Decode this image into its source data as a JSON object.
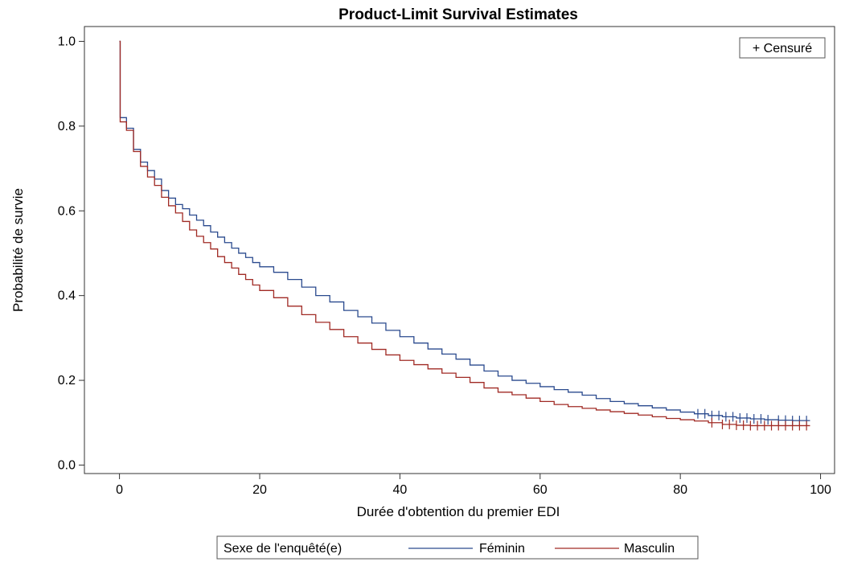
{
  "chart_data": {
    "type": "line",
    "step": true,
    "title": "Product-Limit Survival Estimates",
    "xlabel": "Durée d'obtention du premier EDI",
    "ylabel": "Probabilité de survie",
    "xlim": [
      -5,
      102
    ],
    "ylim": [
      -0.02,
      1.035
    ],
    "x_ticks": [
      0,
      20,
      40,
      60,
      80,
      100
    ],
    "y_ticks": [
      0.0,
      0.2,
      0.4,
      0.6,
      0.8,
      1.0
    ],
    "x_tick_labels": [
      "0",
      "20",
      "40",
      "60",
      "80",
      "100"
    ],
    "y_tick_labels": [
      "0.0",
      "0.2",
      "0.4",
      "0.6",
      "0.8",
      "1.0"
    ],
    "grid": false,
    "censor_legend": {
      "label": "+ Censuré",
      "placement": "top-right"
    },
    "legend": {
      "title": "Sexe de l'enquêté(e)",
      "placement": "bottom-center"
    },
    "series": [
      {
        "name": "Féminin",
        "color": "#2a4a8e",
        "x": [
          0,
          0.1,
          1,
          2,
          3,
          4,
          5,
          6,
          7,
          8,
          9,
          10,
          11,
          12,
          13,
          14,
          15,
          16,
          17,
          18,
          19,
          20,
          22,
          24,
          26,
          28,
          30,
          32,
          34,
          36,
          38,
          40,
          42,
          44,
          46,
          48,
          50,
          52,
          54,
          56,
          58,
          60,
          62,
          64,
          66,
          68,
          70,
          72,
          74,
          76,
          78,
          80,
          82,
          84,
          86,
          88,
          90,
          92,
          94,
          96,
          98.5
        ],
        "y": [
          1.0,
          0.82,
          0.795,
          0.745,
          0.715,
          0.695,
          0.675,
          0.648,
          0.63,
          0.615,
          0.605,
          0.59,
          0.578,
          0.565,
          0.55,
          0.538,
          0.525,
          0.512,
          0.5,
          0.49,
          0.478,
          0.468,
          0.455,
          0.438,
          0.42,
          0.4,
          0.385,
          0.365,
          0.35,
          0.335,
          0.318,
          0.303,
          0.288,
          0.274,
          0.262,
          0.25,
          0.236,
          0.222,
          0.21,
          0.2,
          0.193,
          0.185,
          0.178,
          0.172,
          0.165,
          0.157,
          0.15,
          0.145,
          0.14,
          0.135,
          0.13,
          0.125,
          0.121,
          0.117,
          0.114,
          0.111,
          0.109,
          0.107,
          0.106,
          0.105,
          0.105
        ],
        "censored_x": [
          82.5,
          83.5,
          84.5,
          85.5,
          86.5,
          87.5,
          88.5,
          89.5,
          90.5,
          91.5,
          92.5,
          94,
          95,
          96,
          97,
          98
        ]
      },
      {
        "name": "Masculin",
        "color": "#a02a24",
        "x": [
          0,
          0.1,
          1,
          2,
          3,
          4,
          5,
          6,
          7,
          8,
          9,
          10,
          11,
          12,
          13,
          14,
          15,
          16,
          17,
          18,
          19,
          20,
          22,
          24,
          26,
          28,
          30,
          32,
          34,
          36,
          38,
          40,
          42,
          44,
          46,
          48,
          50,
          52,
          54,
          56,
          58,
          60,
          62,
          64,
          66,
          68,
          70,
          72,
          74,
          76,
          78,
          80,
          82,
          84,
          86,
          88,
          90,
          92,
          94,
          96,
          98.5
        ],
        "y": [
          1.0,
          0.81,
          0.79,
          0.74,
          0.705,
          0.68,
          0.66,
          0.632,
          0.612,
          0.595,
          0.575,
          0.555,
          0.54,
          0.525,
          0.51,
          0.492,
          0.478,
          0.465,
          0.45,
          0.438,
          0.425,
          0.412,
          0.395,
          0.375,
          0.355,
          0.337,
          0.32,
          0.303,
          0.288,
          0.273,
          0.26,
          0.247,
          0.237,
          0.227,
          0.217,
          0.207,
          0.195,
          0.182,
          0.172,
          0.166,
          0.158,
          0.15,
          0.143,
          0.138,
          0.134,
          0.13,
          0.126,
          0.122,
          0.118,
          0.114,
          0.11,
          0.107,
          0.104,
          0.1,
          0.096,
          0.094,
          0.093,
          0.093,
          0.093,
          0.093,
          0.093
        ],
        "censored_x": [
          84.5,
          86,
          87,
          88,
          89,
          90,
          91,
          92,
          93,
          94,
          95,
          96,
          97,
          98
        ]
      }
    ]
  }
}
